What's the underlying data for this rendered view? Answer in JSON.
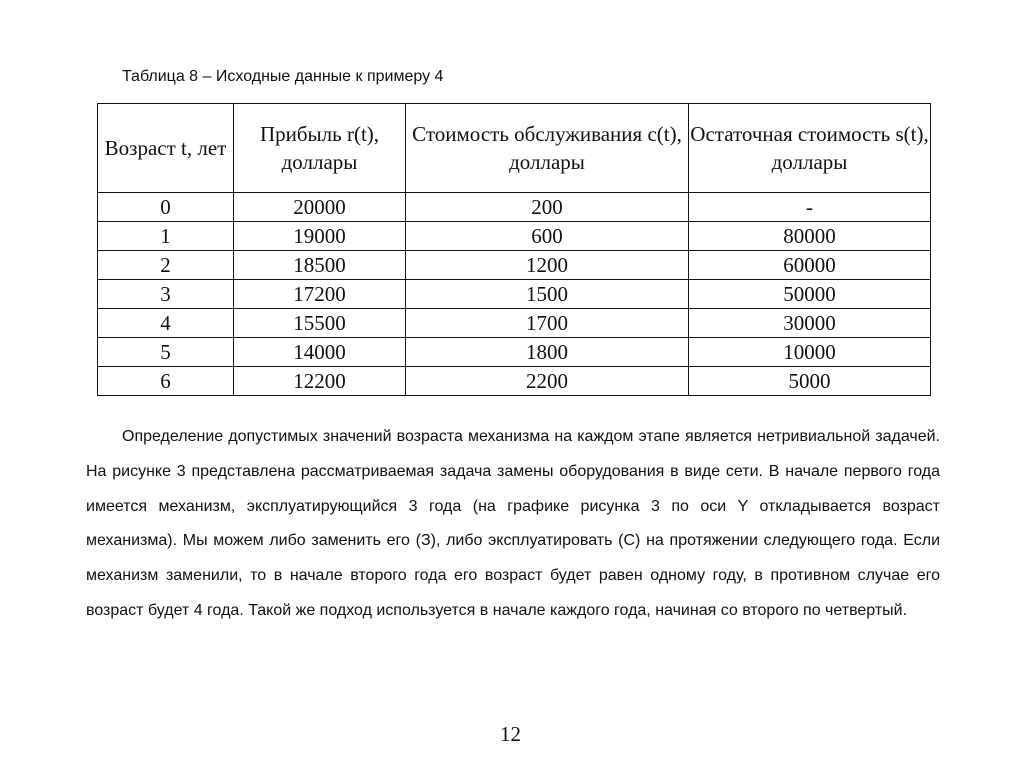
{
  "caption": "Таблица 8 – Исходные данные к примеру 4",
  "table": {
    "headers": [
      "Возраст t, лет",
      "Прибыль r(t), доллары",
      "Стоимость обслуживания c(t), доллары",
      "Остаточная стоимость s(t), доллары"
    ],
    "rows": [
      [
        "0",
        "20000",
        "200",
        "-"
      ],
      [
        "1",
        "19000",
        "600",
        "80000"
      ],
      [
        "2",
        "18500",
        "1200",
        "60000"
      ],
      [
        "3",
        "17200",
        "1500",
        "50000"
      ],
      [
        "4",
        "15500",
        "1700",
        "30000"
      ],
      [
        "5",
        "14000",
        "1800",
        "10000"
      ],
      [
        "6",
        "12200",
        "2200",
        "5000"
      ]
    ]
  },
  "paragraph": "Определение допустимых значений возраста механизма на каждом этапе является нетривиальной задачей. На рисунке 3 представлена рассматриваемая задача замены оборудования в виде сети. В начале первого года имеется механизм, эксплуатирующийся 3 года (на графике рисунка 3 по оси Y откладывается возраст механизма). Мы можем либо заменить его (З), либо эксплуатировать (С) на протяжении следующего года. Если механизм заменили, то в начале второго года его возраст будет равен одному году, в противном случае его возраст будет 4 года. Такой же подход используется в начале каждого года, начиная со второго по четвертый.",
  "page_number": "12"
}
